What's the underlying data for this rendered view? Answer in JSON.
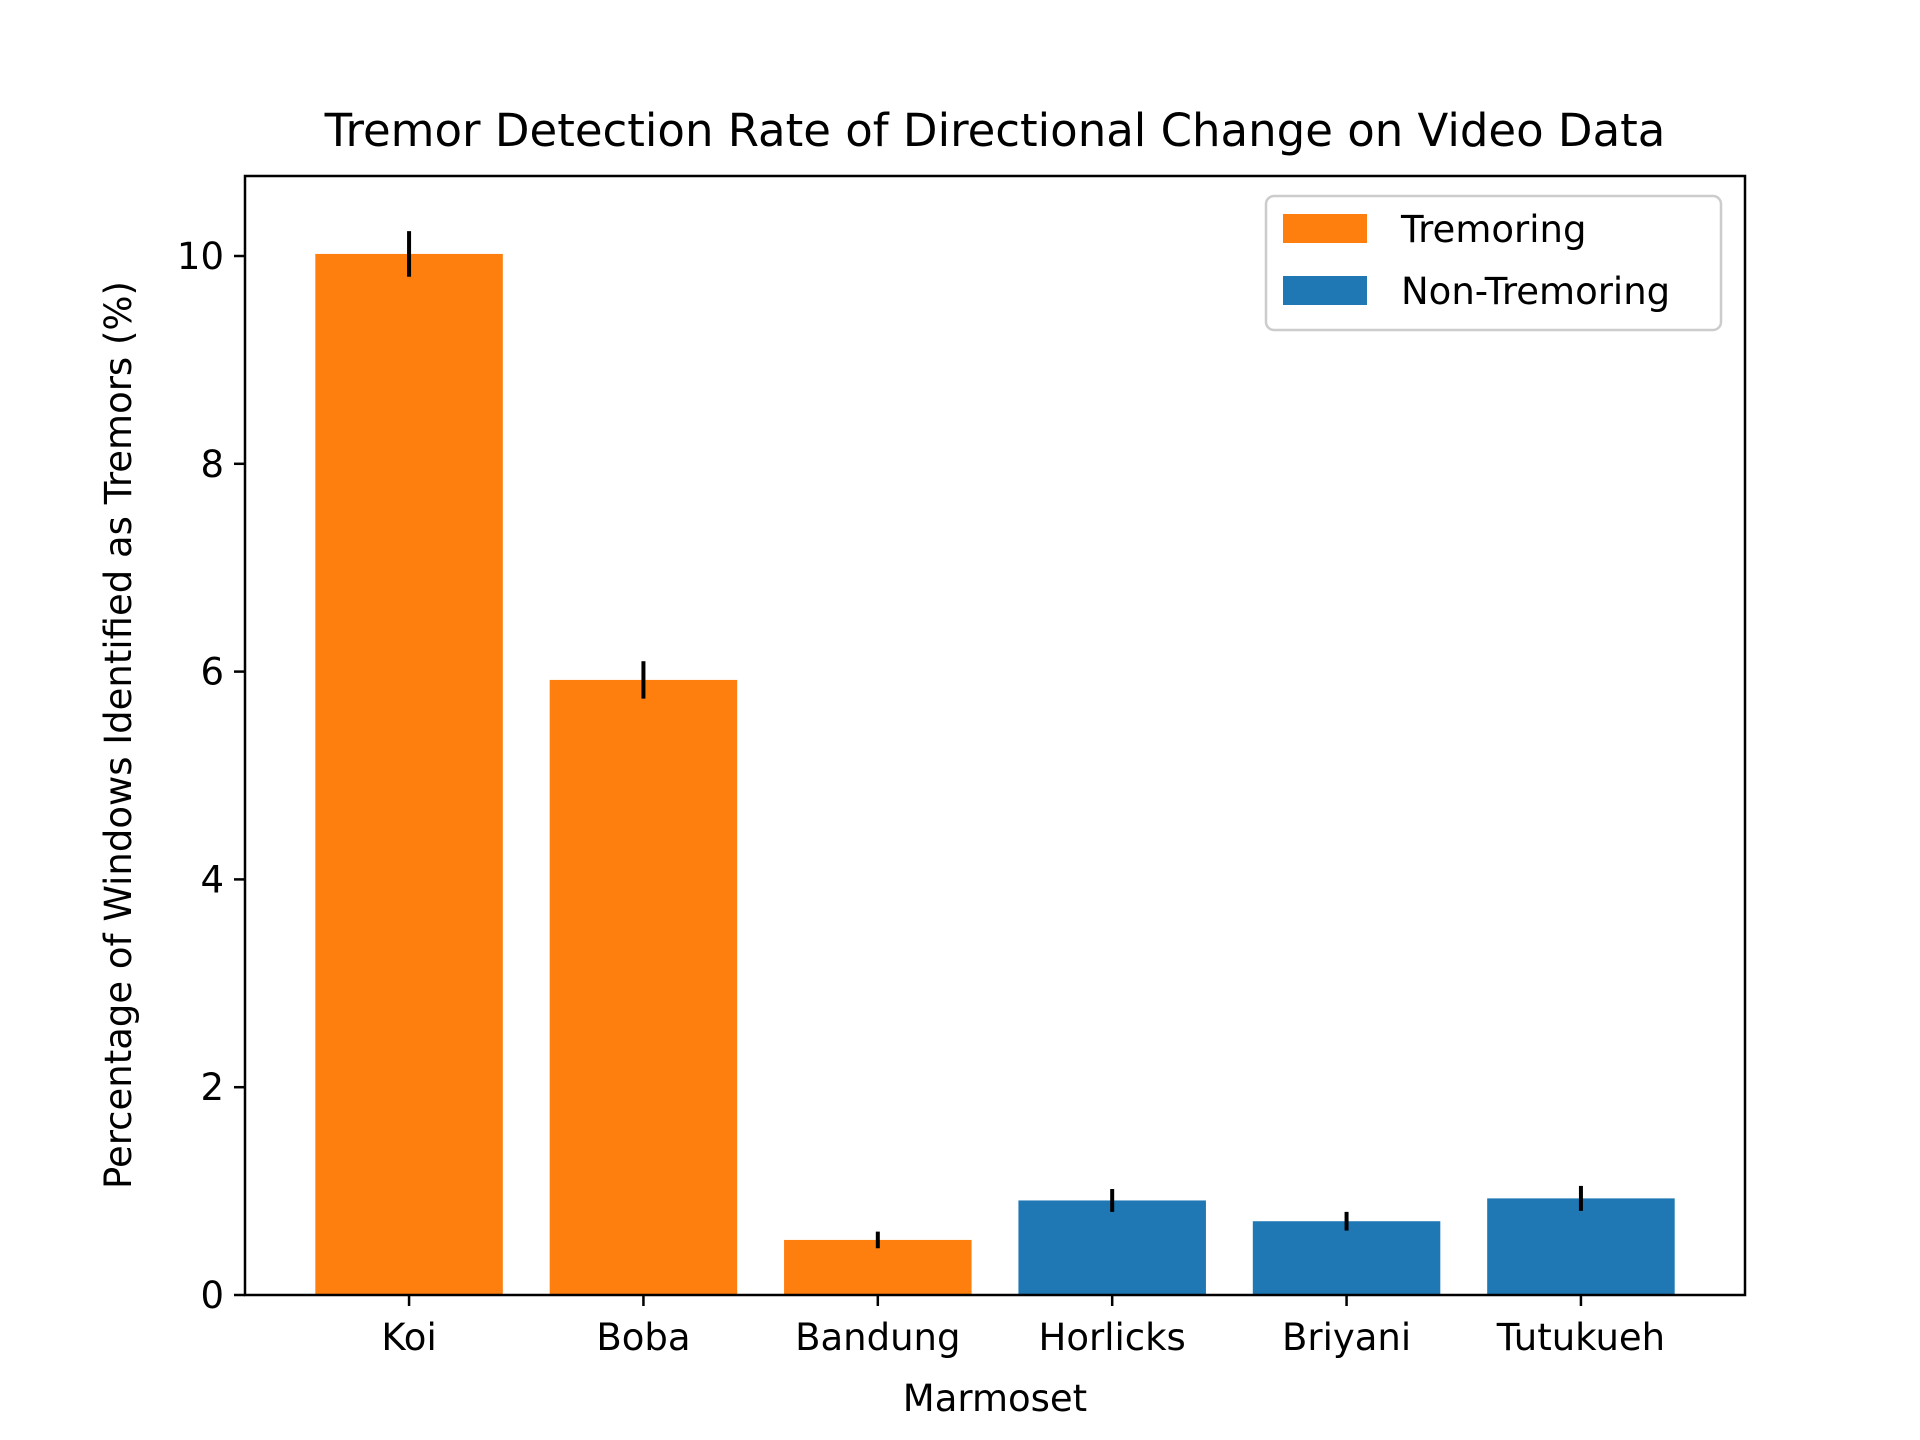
{
  "chart_data": {
    "type": "bar",
    "title": "Tremor Detection Rate of Directional Change on Video Data",
    "xlabel": "Marmoset",
    "ylabel": "Percentage of Windows Identified as Tremors (%)",
    "categories": [
      "Koi",
      "Boba",
      "Bandung",
      "Horlicks",
      "Briyani",
      "Tutukueh"
    ],
    "values": [
      10.02,
      5.92,
      0.53,
      0.91,
      0.71,
      0.93
    ],
    "errors": [
      0.22,
      0.18,
      0.08,
      0.11,
      0.09,
      0.12
    ],
    "groups": [
      "Tremoring",
      "Tremoring",
      "Tremoring",
      "Non-Tremoring",
      "Non-Tremoring",
      "Non-Tremoring"
    ],
    "ylim": [
      0,
      10.77
    ],
    "yticks": [
      0,
      2,
      4,
      6,
      8,
      10
    ],
    "grid": false,
    "legend_position": "top-right",
    "legend": [
      {
        "label": "Tremoring",
        "color": "#ff7f0e"
      },
      {
        "label": "Non-Tremoring",
        "color": "#1f77b4"
      }
    ]
  }
}
